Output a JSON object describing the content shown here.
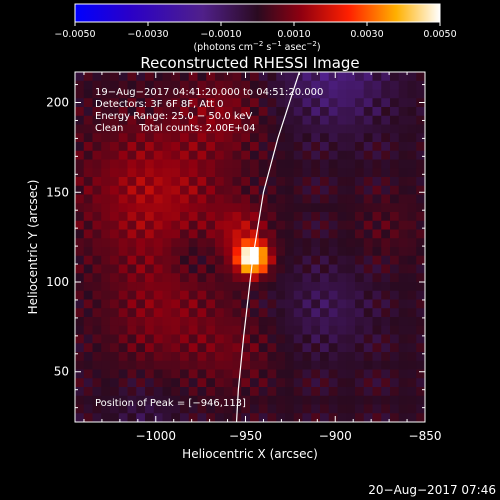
{
  "chart_data": {
    "type": "heatmap",
    "title": "Reconstructed RHESSI Image",
    "xlabel": "Heliocentric X (arcsec)",
    "ylabel": "Heliocentric Y (arcsec)",
    "xlim": [
      -1045,
      -850
    ],
    "ylim": [
      22,
      217
    ],
    "x_ticks": [
      -1000,
      -950,
      -900,
      -850
    ],
    "x_tick_labels": [
      "−1000",
      "−950",
      "−900",
      "−850"
    ],
    "y_ticks": [
      50,
      100,
      150,
      200
    ],
    "y_tick_labels": [
      "50",
      "100",
      "150",
      "200"
    ],
    "colorbar": {
      "range": [
        -0.005,
        0.005
      ],
      "ticks": [
        -0.005,
        -0.003,
        -0.001,
        0.001,
        0.003,
        0.005
      ],
      "tick_labels": [
        "−0.0050",
        "−0.0030",
        "−0.0010",
        "0.0010",
        "0.0030",
        "0.0050"
      ],
      "unit_label": "(photons cm",
      "unit_exp1": "−2",
      "unit_mid": " s",
      "unit_exp2": "−1",
      "unit_mid2": " asec",
      "unit_exp3": "−2",
      "unit_end": ")"
    },
    "info_lines": [
      "19−Aug−2017 04:41:20.000 to 04:51:20.000",
      "Detectors: 3F 6F 8F, Att 0",
      "Energy Range: 25.0 − 50.0 keV",
      "Clean     Total counts: 2.00E+04"
    ],
    "peak_label": "Position of Peak = [−946,113]",
    "peak": {
      "x": -946,
      "y": 113,
      "value": 0.005
    },
    "sources": [
      {
        "x": -946,
        "y": 113,
        "amplitude": 0.0058,
        "sigma": 6
      },
      {
        "x": -952,
        "y": 128,
        "amplitude": 0.0012,
        "sigma": 10
      },
      {
        "x": -1000,
        "y": 150,
        "amplitude": 0.0014,
        "sigma": 30
      },
      {
        "x": -995,
        "y": 80,
        "amplitude": 0.0009,
        "sigma": 24
      },
      {
        "x": -955,
        "y": 60,
        "amplitude": 0.0006,
        "sigma": 16
      },
      {
        "x": -962,
        "y": 195,
        "amplitude": 0.0008,
        "sigma": 16
      },
      {
        "x": -900,
        "y": 215,
        "amplitude": -0.0012,
        "sigma": 22
      },
      {
        "x": -905,
        "y": 85,
        "amplitude": -0.0007,
        "sigma": 18
      },
      {
        "x": -1005,
        "y": 25,
        "amplitude": -0.0005,
        "sigma": 14
      },
      {
        "x": -870,
        "y": 130,
        "amplitude": 0.0004,
        "sigma": 14
      },
      {
        "x": -980,
        "y": 115,
        "amplitude": -0.0006,
        "sigma": 10
      }
    ],
    "limb": {
      "color": "#ffffff",
      "points": [
        [
          -920,
          217
        ],
        [
          -932,
          180
        ],
        [
          -940,
          150
        ],
        [
          -946,
          113
        ],
        [
          -951,
          70
        ],
        [
          -954,
          40
        ],
        [
          -955,
          22
        ]
      ]
    }
  },
  "timestamp": "20−Aug−2017 07:46"
}
